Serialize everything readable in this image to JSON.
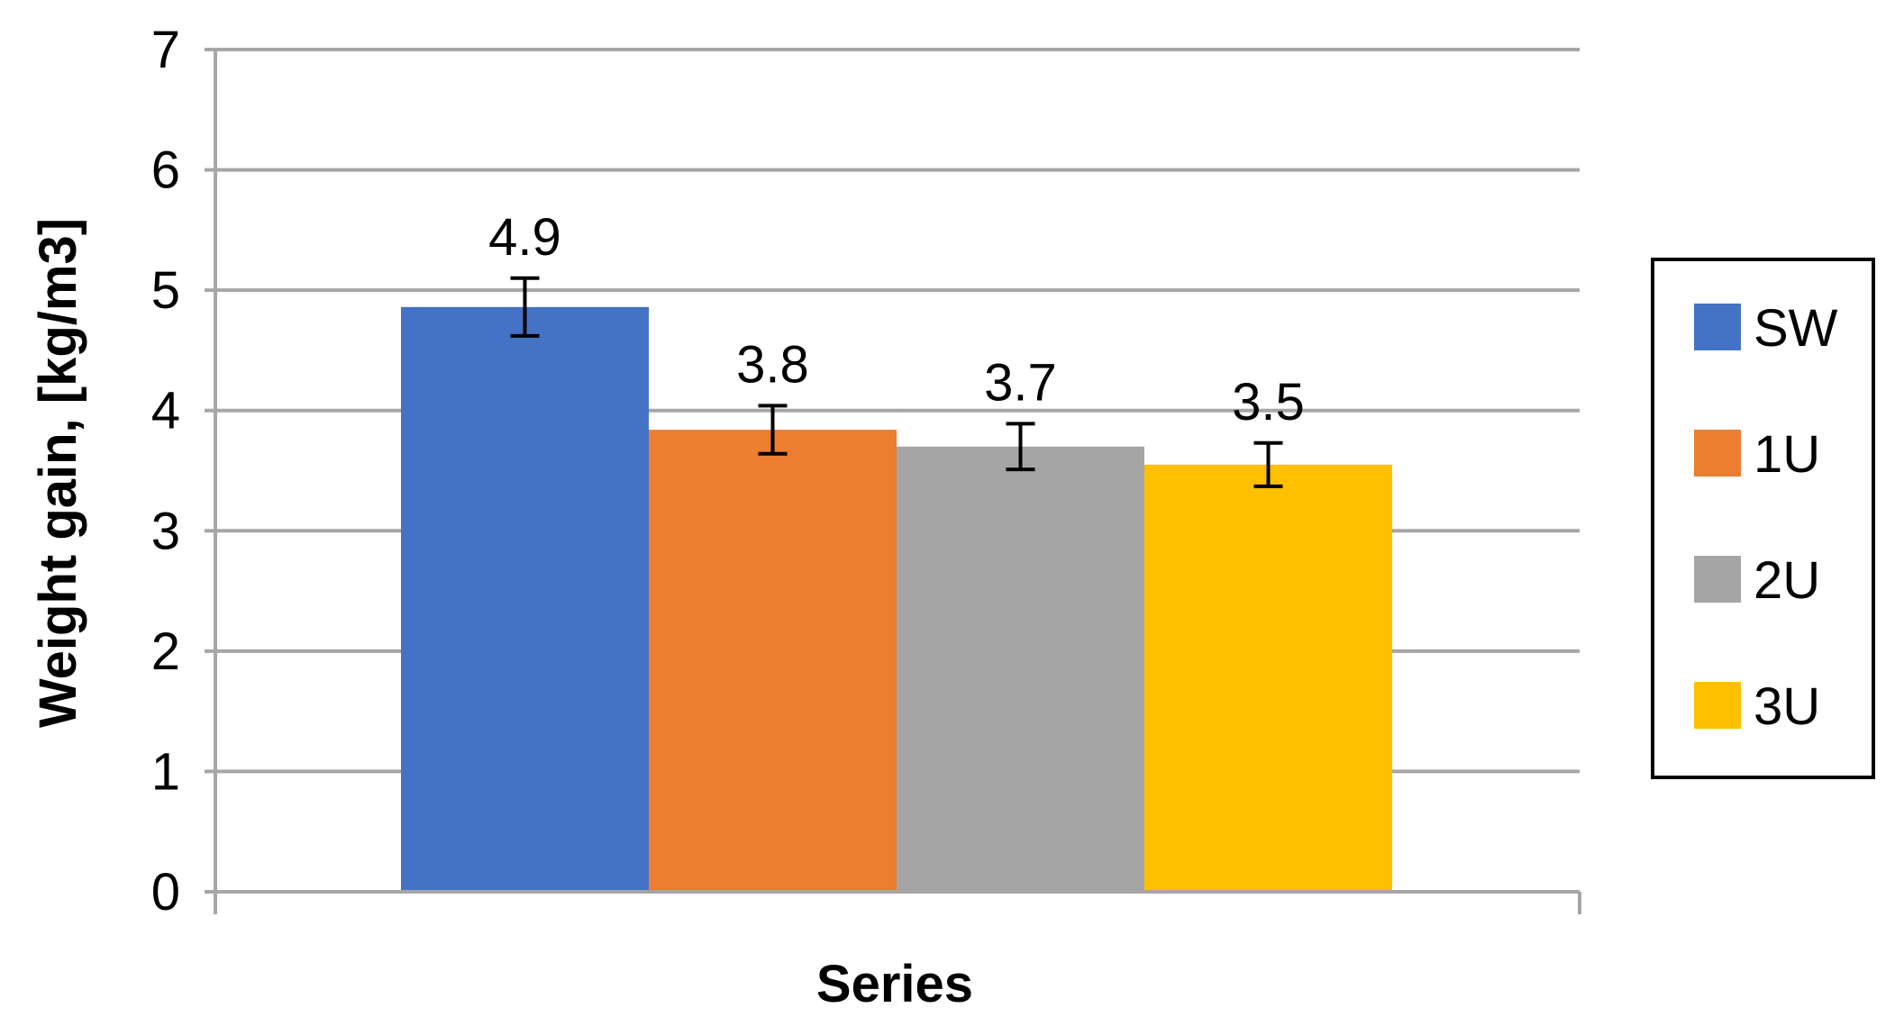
{
  "chart_data": {
    "type": "bar",
    "xlabel": "Series",
    "ylabel": "Weight gain, [kg/m3]",
    "ylim": [
      0,
      7
    ],
    "yticks": [
      0,
      1,
      2,
      3,
      4,
      5,
      6,
      7
    ],
    "grid": true,
    "legend_position": "right",
    "series": [
      {
        "name": "SW",
        "value": 4.86,
        "label": "4.9",
        "error": 0.24,
        "color": "#4472C4"
      },
      {
        "name": "1U",
        "value": 3.84,
        "label": "3.8",
        "error": 0.2,
        "color": "#ED7D31"
      },
      {
        "name": "2U",
        "value": 3.7,
        "label": "3.7",
        "error": 0.19,
        "color": "#A5A5A5"
      },
      {
        "name": "3U",
        "value": 3.55,
        "label": "3.5",
        "error": 0.18,
        "color": "#FFC000"
      }
    ]
  }
}
